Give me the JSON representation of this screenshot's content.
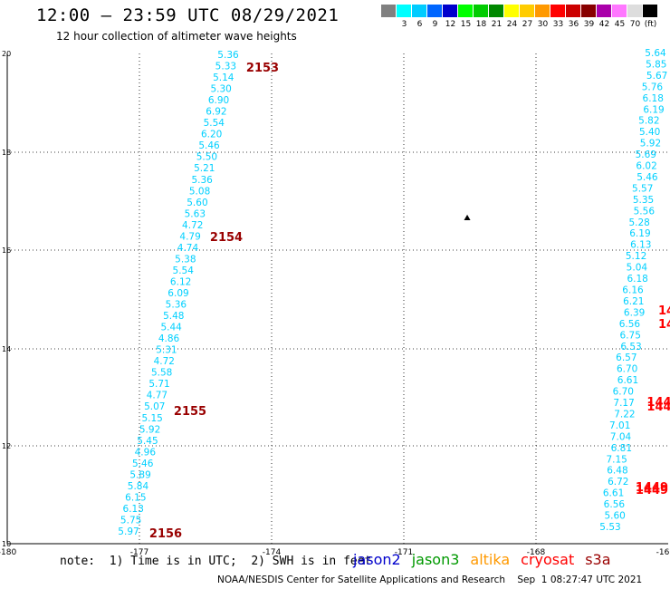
{
  "header": {
    "title": "12:00 – 23:59 UTC 08/29/2021",
    "subtitle": "12 hour collection of altimeter wave heights"
  },
  "legend": {
    "unit": "(ft)",
    "items": [
      {
        "color": "#808080",
        "label": ""
      },
      {
        "color": "#00ffff",
        "label": "3"
      },
      {
        "color": "#00ccff",
        "label": "6"
      },
      {
        "color": "#0066ff",
        "label": "9"
      },
      {
        "color": "#0000cc",
        "label": "12"
      },
      {
        "color": "#00ff00",
        "label": "15"
      },
      {
        "color": "#00cc00",
        "label": "18"
      },
      {
        "color": "#008800",
        "label": "21"
      },
      {
        "color": "#ffff00",
        "label": "24"
      },
      {
        "color": "#ffcc00",
        "label": "27"
      },
      {
        "color": "#ff9900",
        "label": "30"
      },
      {
        "color": "#ff0000",
        "label": "33"
      },
      {
        "color": "#cc0000",
        "label": "36"
      },
      {
        "color": "#880000",
        "label": "39"
      },
      {
        "color": "#aa00aa",
        "label": "42"
      },
      {
        "color": "#ff77ff",
        "label": "45"
      },
      {
        "color": "#dddddd",
        "label": "70"
      },
      {
        "color": "#000000",
        "label": ""
      }
    ]
  },
  "axes": {
    "x_ticks": [
      "-180",
      "-177",
      "-174",
      "-171",
      "-168",
      "-16"
    ],
    "y_ticks": [
      "20",
      "18",
      "16",
      "14",
      "12",
      "10"
    ]
  },
  "tracks": [
    {
      "name": "left-track",
      "color": "#00d0ff",
      "values": [
        "5.36",
        "5.33",
        "5.14",
        "5.30",
        "6.90",
        "6.92",
        "5.54",
        "6.20",
        "5.46",
        "5.50",
        "5.21",
        "5.36",
        "5.08",
        "5.60",
        "5.63",
        "4.72",
        "4.79",
        "4.74",
        "5.38",
        "5.54",
        "6.12",
        "6.09",
        "5.36",
        "5.48",
        "5.44",
        "4.86",
        "5.31",
        "4.72",
        "5.58",
        "5.71",
        "4.77",
        "5.07",
        "5.15",
        "5.92",
        "5.45",
        "4.96",
        "5.46",
        "5.89",
        "5.84",
        "6.15",
        "6.13",
        "5.75",
        "5.97"
      ]
    },
    {
      "name": "right-track",
      "color": "#00d0ff",
      "values": [
        "5.64",
        "5.85",
        "5.67",
        "5.76",
        "6.18",
        "6.19",
        "5.82",
        "5.40",
        "5.92",
        "5.69",
        "6.02",
        "5.46",
        "5.57",
        "5.35",
        "5.56",
        "5.28",
        "6.19",
        "6.13",
        "5.12",
        "5.04",
        "6.18",
        "6.16",
        "6.21",
        "6.39",
        "6.56",
        "6.75",
        "6.53",
        "6.57",
        "6.70",
        "6.61",
        "6.70",
        "7.17",
        "7.22",
        "7.01",
        "7.04",
        "6.81",
        "7.15",
        "6.48",
        "6.72",
        "6.61",
        "6.56",
        "5.60",
        "5.53"
      ]
    }
  ],
  "time_labels": [
    {
      "text": "2153",
      "color": "#990000"
    },
    {
      "text": "2154",
      "color": "#990000"
    },
    {
      "text": "2155",
      "color": "#990000"
    },
    {
      "text": "2156",
      "color": "#990000"
    },
    {
      "text": "14",
      "color": "#ff0000"
    },
    {
      "text": "14",
      "color": "#ff0000"
    },
    {
      "text": "144",
      "color": "#ff0000"
    },
    {
      "text": "144",
      "color": "#ff0000"
    },
    {
      "text": "1449",
      "color": "#ff0000"
    },
    {
      "text": "1449",
      "color": "#ff0000"
    }
  ],
  "island_label": "⛰",
  "note": "note:  1) Time is in UTC;  2) SWH is in feet",
  "missions": [
    {
      "name": "jason2",
      "color": "#0000cc"
    },
    {
      "name": "jason3",
      "color": "#009900"
    },
    {
      "name": "altika",
      "color": "#ff9900"
    },
    {
      "name": "cryosat",
      "color": "#ff0000"
    },
    {
      "name": "s3a",
      "color": "#990000"
    }
  ],
  "credit": "NOAA/NESDIS Center for Satellite Applications and Research    Sep  1 08:27:47 UTC 2021"
}
